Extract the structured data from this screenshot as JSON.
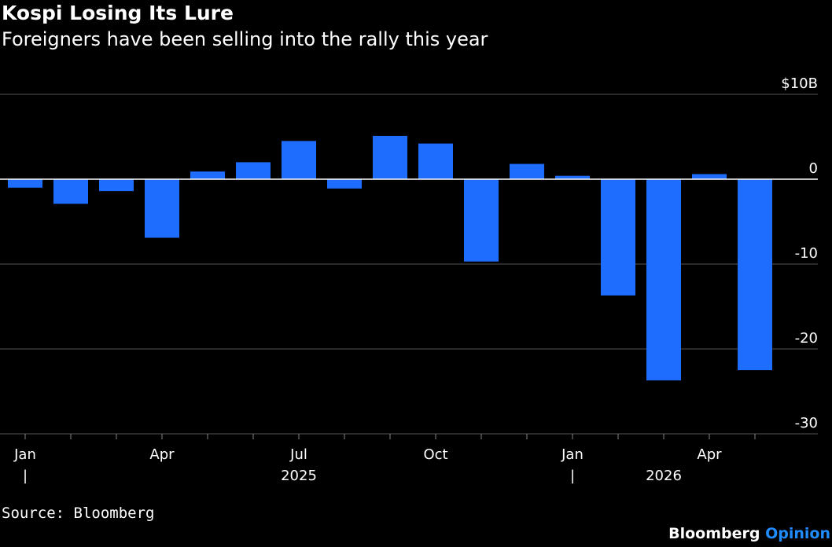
{
  "title": "Kospi Losing Its Lure",
  "subtitle": "Foreigners have been selling into the rally this year",
  "source": "Source: Bloomberg",
  "brand": {
    "name": "Bloomberg",
    "suffix": "Opinion"
  },
  "colors": {
    "background": "#000000",
    "bar": "#1f6dff",
    "grid": "#555555",
    "zero_line": "#ffffff",
    "brand_accent": "#1f8cff"
  },
  "chart_data": {
    "type": "bar",
    "categories": [
      "Jan 2025",
      "Feb 2025",
      "Mar 2025",
      "Apr 2025",
      "May 2025",
      "Jun 2025",
      "Jul 2025",
      "Aug 2025",
      "Sep 2025",
      "Oct 2025",
      "Nov 2025",
      "Dec 2025",
      "Jan 2026",
      "Feb 2026",
      "Mar 2026",
      "Apr 2026",
      "May 2026"
    ],
    "values": [
      -1.0,
      -2.9,
      -1.4,
      -6.9,
      0.9,
      2.0,
      4.5,
      -1.1,
      5.1,
      4.2,
      -9.7,
      1.8,
      0.4,
      -13.7,
      -23.7,
      0.6,
      -22.5
    ],
    "ylim": [
      -30,
      10
    ],
    "yticks": [
      10,
      0,
      -10,
      -20,
      -30
    ],
    "ytick_labels": [
      "$10B",
      "0",
      "-10",
      "-20",
      "-30"
    ],
    "x_tick_labels": [
      {
        "index": 0,
        "label": "Jan"
      },
      {
        "index": 3,
        "label": "Apr"
      },
      {
        "index": 6,
        "label": "Jul"
      },
      {
        "index": 9,
        "label": "Oct"
      },
      {
        "index": 12,
        "label": "Jan"
      },
      {
        "index": 15,
        "label": "Apr"
      }
    ],
    "year_labels": [
      {
        "index": 6,
        "label": "2025"
      },
      {
        "index": 14,
        "label": "2026"
      }
    ],
    "year_separators": [
      0,
      12
    ],
    "year_separator_label": "|",
    "grid": true,
    "ylabel_position": "right"
  }
}
